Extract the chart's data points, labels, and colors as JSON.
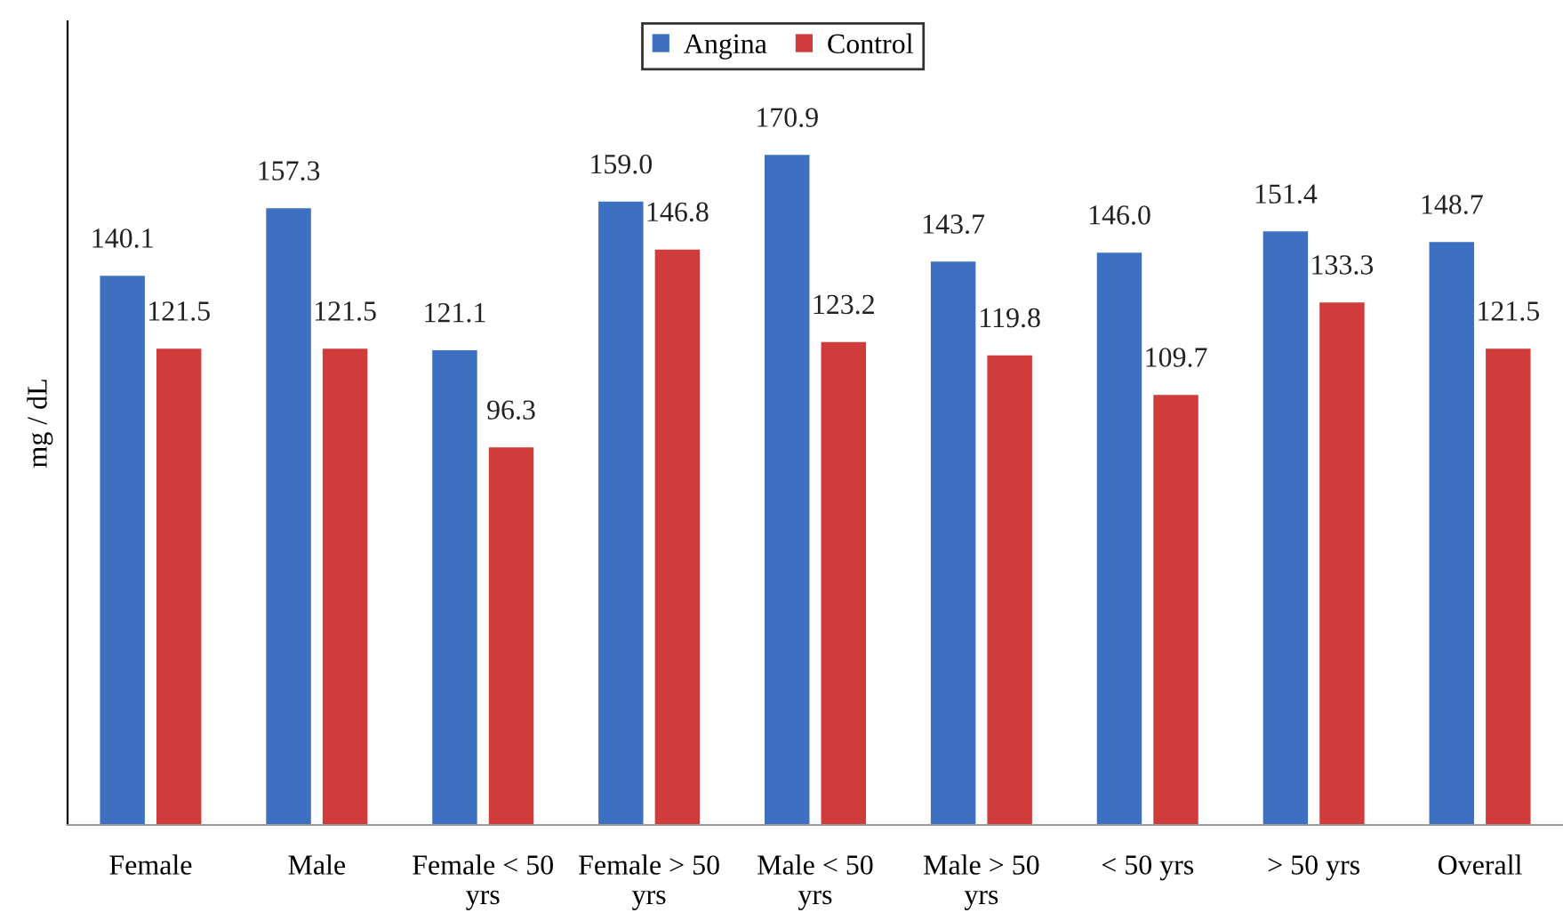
{
  "chart_data": {
    "type": "bar",
    "categories": [
      "Female",
      "Male",
      "Female < 50\nyrs",
      "Female > 50\nyrs",
      "Male < 50\nyrs",
      "Male > 50\nyrs",
      "< 50 yrs",
      "> 50 yrs",
      "Overall"
    ],
    "series": [
      {
        "name": "Angina",
        "color": "#3d70c0",
        "values": [
          140.1,
          157.3,
          121.1,
          159.0,
          170.9,
          143.7,
          146.0,
          151.4,
          148.7
        ],
        "value_labels": [
          "140.1",
          "157.3",
          "121.1",
          "159.0",
          "170.9",
          "143.7",
          "146.0",
          "151.4",
          "148.7"
        ]
      },
      {
        "name": "Control",
        "color": "#d03b3b",
        "values": [
          121.5,
          121.5,
          96.3,
          146.8,
          123.2,
          119.8,
          109.7,
          133.3,
          121.5
        ],
        "value_labels": [
          "121.5",
          "121.5",
          "96.3",
          "146.8",
          "123.2",
          "119.8",
          "109.7",
          "133.3",
          "121.5"
        ]
      }
    ],
    "ylabel": "mg / dL",
    "ylim": [
      0,
      205
    ],
    "tick_labels": "x",
    "legend": "top",
    "grid": false
  }
}
